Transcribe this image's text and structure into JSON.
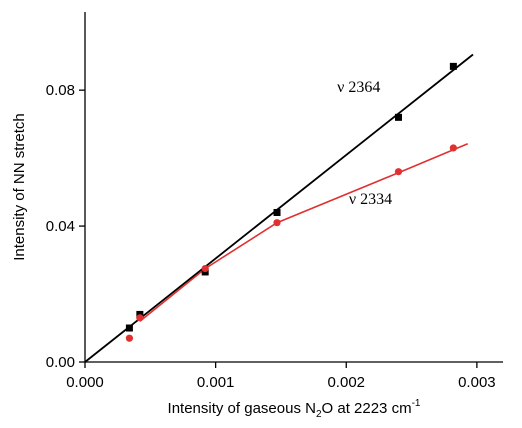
{
  "chart_data": {
    "type": "scatter",
    "xlabel": {
      "prefix": "Intensity of gaseous N",
      "sub": "2",
      "mid": "O at 2223 cm",
      "sup": "-1"
    },
    "ylabel": "Intensity of NN stretch",
    "xlim": [
      0,
      0.0032
    ],
    "ylim": [
      0,
      0.103
    ],
    "xticks": [
      0.0,
      0.001,
      0.002,
      0.003
    ],
    "xtick_labels": [
      "0.000",
      "0.001",
      "0.002",
      "0.003"
    ],
    "yticks": [
      0.0,
      0.04,
      0.08
    ],
    "ytick_labels": [
      "0.00",
      "0.04",
      "0.08"
    ],
    "grid": false,
    "legend": "none",
    "series": [
      {
        "name": "ν 2364",
        "color": "#000000",
        "marker": "square",
        "points": [
          {
            "x": 0.00034,
            "y": 0.01
          },
          {
            "x": 0.00042,
            "y": 0.014
          },
          {
            "x": 0.00092,
            "y": 0.0265
          },
          {
            "x": 0.00147,
            "y": 0.044
          },
          {
            "x": 0.0024,
            "y": 0.072
          },
          {
            "x": 0.00282,
            "y": 0.087
          }
        ],
        "fit": {
          "x": [
            0.0,
            0.00297
          ],
          "y": [
            0.0,
            0.0905
          ]
        }
      },
      {
        "name": "ν 2334",
        "color": "#e03030",
        "marker": "circle",
        "points": [
          {
            "x": 0.00034,
            "y": 0.007
          },
          {
            "x": 0.00042,
            "y": 0.013
          },
          {
            "x": 0.00092,
            "y": 0.0275
          },
          {
            "x": 0.00147,
            "y": 0.041
          },
          {
            "x": 0.0024,
            "y": 0.056
          },
          {
            "x": 0.00282,
            "y": 0.063
          }
        ],
        "fit": {
          "x": [
            0.00042,
            0.00092,
            0.00147,
            0.0024,
            0.00293
          ],
          "y": [
            0.012,
            0.0275,
            0.041,
            0.0557,
            0.0642
          ]
        }
      }
    ]
  }
}
